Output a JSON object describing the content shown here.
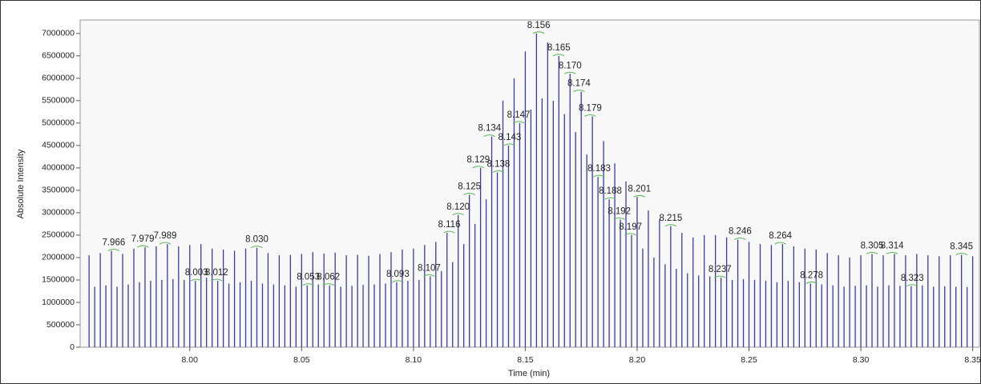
{
  "chart_data": {
    "type": "stick",
    "xlabel": "Time (min)",
    "ylabel": "Absolute Intensity",
    "color": "#3a3aa8",
    "xlim": [
      7.951,
      8.353
    ],
    "ylim": [
      0,
      7300000
    ],
    "xticks": [
      {
        "value": 8.0,
        "label": "8.00"
      },
      {
        "value": 8.05,
        "label": "8.05"
      },
      {
        "value": 8.1,
        "label": "8.10"
      },
      {
        "value": 8.15,
        "label": "8.15"
      },
      {
        "value": 8.2,
        "label": "8.20"
      },
      {
        "value": 8.25,
        "label": "8.25"
      },
      {
        "value": 8.3,
        "label": "8.30"
      },
      {
        "value": 8.35,
        "label": "8.35"
      }
    ],
    "yticks": [
      0,
      500000,
      1000000,
      1500000,
      2000000,
      2500000,
      3000000,
      3500000,
      4000000,
      4500000,
      5000000,
      5500000,
      6000000,
      6500000,
      7000000
    ],
    "x": [
      7.955,
      7.9575,
      7.96,
      7.9625,
      7.965,
      7.9675,
      7.97,
      7.9725,
      7.975,
      7.9775,
      7.98,
      7.9825,
      7.985,
      7.9875,
      7.99,
      7.9925,
      7.995,
      7.9975,
      8,
      8.0025,
      8.005,
      8.0075,
      8.01,
      8.0125,
      8.015,
      8.0175,
      8.02,
      8.0225,
      8.025,
      8.0275,
      8.03,
      8.0325,
      8.035,
      8.0375,
      8.04,
      8.0425,
      8.045,
      8.0475,
      8.05,
      8.0525,
      8.055,
      8.0575,
      8.06,
      8.0625,
      8.065,
      8.0675,
      8.07,
      8.0725,
      8.075,
      8.0775,
      8.08,
      8.0825,
      8.085,
      8.0875,
      8.09,
      8.0925,
      8.095,
      8.0975,
      8.1,
      8.1025,
      8.105,
      8.1075,
      8.11,
      8.1125,
      8.115,
      8.1175,
      8.12,
      8.1225,
      8.125,
      8.1275,
      8.13,
      8.1325,
      8.135,
      8.1375,
      8.14,
      8.1425,
      8.145,
      8.1475,
      8.15,
      8.1525,
      8.155,
      8.1575,
      8.16,
      8.1625,
      8.165,
      8.1675,
      8.17,
      8.1725,
      8.175,
      8.1775,
      8.18,
      8.1825,
      8.185,
      8.1875,
      8.19,
      8.1925,
      8.195,
      8.1975,
      8.2,
      8.2025,
      8.205,
      8.2075,
      8.21,
      8.2125,
      8.215,
      8.2175,
      8.22,
      8.2225,
      8.225,
      8.2275,
      8.23,
      8.2325,
      8.235,
      8.2375,
      8.24,
      8.2425,
      8.245,
      8.2475,
      8.25,
      8.2525,
      8.255,
      8.2575,
      8.26,
      8.2625,
      8.265,
      8.2675,
      8.27,
      8.2725,
      8.275,
      8.2775,
      8.28,
      8.2825,
      8.285,
      8.2875,
      8.29,
      8.2925,
      8.295,
      8.2975,
      8.3,
      8.3025,
      8.305,
      8.3075,
      8.31,
      8.3125,
      8.315,
      8.3175,
      8.32,
      8.3225,
      8.325,
      8.3275,
      8.33,
      8.3325,
      8.335,
      8.3375,
      8.34,
      8.3425,
      8.345,
      8.3475,
      8.35
    ],
    "values": [
      2050000,
      1350000,
      2100000,
      1380000,
      2150000,
      1350000,
      2080000,
      1400000,
      2200000,
      1450000,
      2230000,
      1480000,
      2250000,
      1500000,
      2300000,
      1520000,
      2250000,
      1500000,
      2280000,
      1480000,
      2300000,
      1550000,
      2200000,
      1480000,
      2180000,
      1420000,
      2150000,
      1450000,
      2200000,
      1480000,
      2220000,
      1420000,
      2100000,
      1400000,
      2050000,
      1380000,
      2060000,
      1350000,
      2080000,
      1380000,
      2120000,
      1400000,
      2090000,
      1380000,
      2110000,
      1350000,
      2050000,
      1370000,
      2060000,
      1390000,
      2040000,
      1400000,
      2080000,
      1420000,
      2120000,
      1450000,
      2180000,
      1480000,
      2200000,
      1500000,
      2280000,
      1580000,
      2350000,
      1700000,
      2550000,
      1900000,
      2950000,
      2300000,
      3400000,
      2750000,
      4000000,
      3300000,
      4700000,
      3900000,
      5500000,
      4500000,
      6000000,
      5000000,
      6600000,
      5300000,
      7000000,
      5550000,
      6800000,
      5500000,
      6500000,
      5200000,
      6100000,
      4800000,
      5700000,
      4300000,
      5150000,
      3800000,
      4600000,
      3300000,
      4100000,
      2850000,
      3700000,
      2500000,
      3350000,
      2200000,
      3050000,
      2000000,
      2850000,
      1850000,
      2700000,
      1750000,
      2550000,
      1650000,
      2450000,
      1600000,
      2500000,
      1580000,
      2500000,
      1550000,
      2450000,
      1500000,
      2400000,
      1520000,
      2350000,
      1500000,
      2300000,
      1480000,
      2280000,
      1450000,
      2300000,
      1480000,
      2250000,
      1450000,
      2200000,
      1420000,
      2180000,
      1400000,
      2100000,
      1380000,
      2050000,
      1350000,
      2000000,
      1370000,
      2050000,
      1380000,
      2080000,
      1350000,
      2050000,
      1380000,
      2080000,
      1370000,
      2050000,
      1360000,
      2080000,
      1380000,
      2050000,
      1350000,
      2030000,
      1360000,
      2050000,
      1350000,
      2060000,
      1340000,
      2030000
    ],
    "peak_labels": [
      7.966,
      7.979,
      7.989,
      8.003,
      8.012,
      {
        "value": 8.03,
        "label": "8.030"
      },
      8.053,
      8.062,
      8.093,
      8.107,
      8.116,
      {
        "value": 8.12,
        "label": "8.120"
      },
      8.125,
      8.129,
      8.134,
      8.138,
      8.143,
      8.147,
      8.156,
      8.165,
      {
        "value": 8.17,
        "label": "8.170"
      },
      8.174,
      8.179,
      8.183,
      8.188,
      8.192,
      8.197,
      8.201,
      8.215,
      8.237,
      8.246,
      8.264,
      8.278,
      8.305,
      8.314,
      8.323,
      8.345
    ]
  }
}
